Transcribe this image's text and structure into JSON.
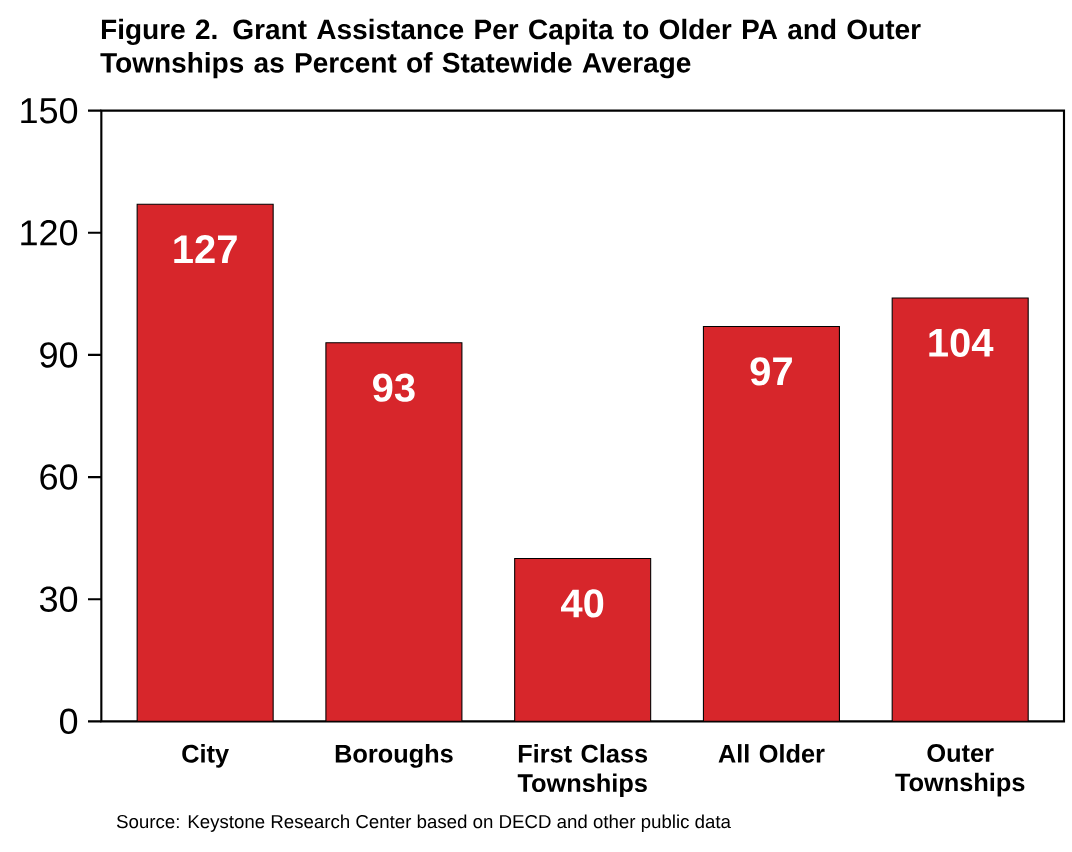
{
  "chart_data": {
    "type": "bar",
    "title": "Figure 2. Grant Assistance Per Capita to Older PA and Outer Townships as Percent of Statewide Average",
    "categories": [
      "City",
      "Boroughs",
      "First Class Townships",
      "All Older",
      "Outer Townships"
    ],
    "values": [
      127,
      93,
      40,
      97,
      104
    ],
    "color": "#d7262b",
    "ylim": [
      0,
      150
    ],
    "yticks": [
      0,
      30,
      60,
      90,
      120,
      150
    ],
    "data_labels": true,
    "grid": false,
    "annotations": [
      "Source: Keystone Research Center based on DECD and other public data"
    ]
  }
}
